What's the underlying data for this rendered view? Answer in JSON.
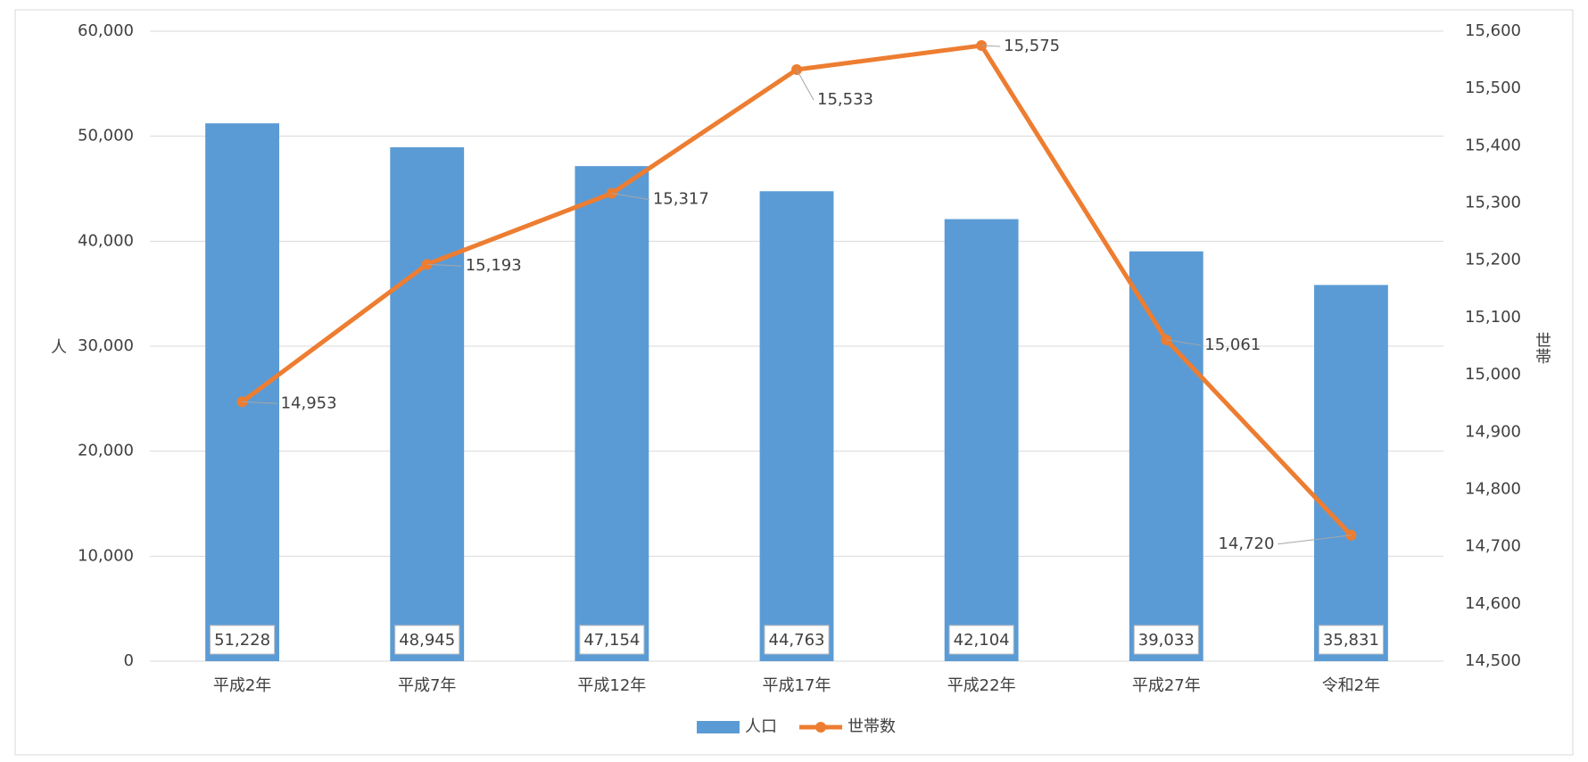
{
  "chart_data": {
    "type": "bar_line",
    "categories": [
      "平成2年",
      "平成7年",
      "平成12年",
      "平成17年",
      "平成22年",
      "平成27年",
      "令和2年"
    ],
    "y_label": "人",
    "y2_label": "世帯",
    "ylim": [
      0,
      60000
    ],
    "yticks": [
      0,
      {
        "value": 10000,
        "label": "10,000"
      },
      {
        "value": 20000,
        "label": "20,000"
      },
      {
        "value": 30000,
        "label": "30,000"
      },
      {
        "value": 40000,
        "label": "40,000"
      },
      {
        "value": 50000,
        "label": "50,000"
      },
      {
        "value": 60000,
        "label": "60,000"
      }
    ],
    "y2lim": [
      14500,
      15600
    ],
    "y2ticks": [
      {
        "value": 14500,
        "label": "14,500"
      },
      {
        "value": 14600,
        "label": "14,600"
      },
      {
        "value": 14700,
        "label": "14,700"
      },
      {
        "value": 14800,
        "label": "14,800"
      },
      {
        "value": 14900,
        "label": "14,900"
      },
      {
        "value": 15000,
        "label": "15,000"
      },
      {
        "value": 15100,
        "label": "15,100"
      },
      {
        "value": 15200,
        "label": "15,200"
      },
      {
        "value": 15300,
        "label": "15,300"
      },
      {
        "value": 15400,
        "label": "15,400"
      },
      {
        "value": 15500,
        "label": "15,500"
      },
      {
        "value": 15600,
        "label": "15,600"
      }
    ],
    "grid": true,
    "legend": "bottom",
    "series": [
      {
        "name": "人口",
        "type": "bar",
        "color": "#5b9bd5",
        "values": [
          51228,
          48945,
          47154,
          44763,
          42104,
          39033,
          35831
        ],
        "value_labels": [
          "51,228",
          "48,945",
          "47,154",
          "44,763",
          "42,104",
          "39,033",
          "35,831"
        ]
      },
      {
        "name": "世帯数",
        "type": "line",
        "axis": "y2",
        "color": "#ed7d31",
        "values": [
          14953,
          15193,
          15317,
          15533,
          15575,
          15061,
          14720
        ],
        "value_labels": [
          "14,953",
          "15,193",
          "15,317",
          "15,533",
          "15,575",
          "15,061",
          "14,720"
        ]
      }
    ]
  }
}
